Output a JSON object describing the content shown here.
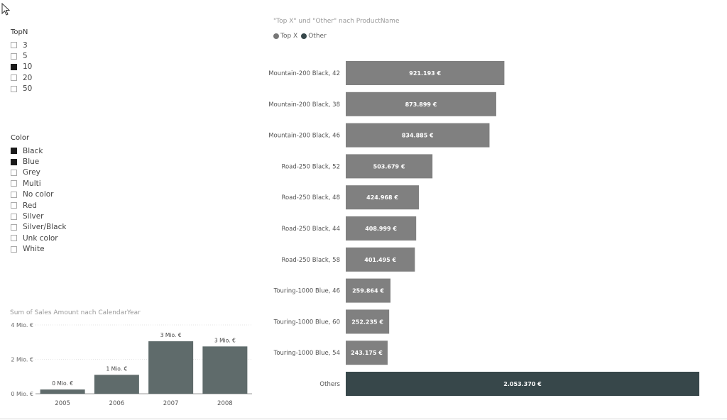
{
  "slicer_topn": {
    "title": "TopN",
    "items": [
      {
        "label": "3",
        "checked": false
      },
      {
        "label": "5",
        "checked": false
      },
      {
        "label": "10",
        "checked": true
      },
      {
        "label": "20",
        "checked": false
      },
      {
        "label": "50",
        "checked": false
      }
    ]
  },
  "slicer_color": {
    "title": "Color",
    "items": [
      {
        "label": "Black",
        "checked": true
      },
      {
        "label": "Blue",
        "checked": true
      },
      {
        "label": "Grey",
        "checked": false
      },
      {
        "label": "Multi",
        "checked": false
      },
      {
        "label": "No color",
        "checked": false
      },
      {
        "label": "Red",
        "checked": false
      },
      {
        "label": "Silver",
        "checked": false
      },
      {
        "label": "Silver/Black",
        "checked": false
      },
      {
        "label": "Unk color",
        "checked": false
      },
      {
        "label": "White",
        "checked": false
      }
    ]
  },
  "legend": {
    "items": [
      {
        "label": "Top X",
        "color": "#777777"
      },
      {
        "label": "Other",
        "color": "#37474a"
      }
    ]
  },
  "chart_data": [
    {
      "type": "bar",
      "orientation": "horizontal",
      "title": "\"Top X\" und \"Other\" nach ProductName",
      "categories": [
        "Mountain-200 Black, 42",
        "Mountain-200 Black, 38",
        "Mountain-200 Black, 46",
        "Road-250 Black, 52",
        "Road-250 Black, 48",
        "Road-250 Black, 44",
        "Road-250 Black, 58",
        "Touring-1000 Blue, 46",
        "Touring-1000 Blue, 60",
        "Touring-1000 Blue, 54",
        "Others"
      ],
      "values": [
        921193,
        873899,
        834885,
        503679,
        424968,
        408999,
        401495,
        259864,
        252235,
        243175,
        2053370
      ],
      "value_labels": [
        "921.193 €",
        "873.899 €",
        "834.885 €",
        "503.679 €",
        "424.968 €",
        "408.999 €",
        "401.495 €",
        "259.864 €",
        "252.235 €",
        "243.175 €",
        "2.053.370 €"
      ],
      "groups": [
        "Top X",
        "Top X",
        "Top X",
        "Top X",
        "Top X",
        "Top X",
        "Top X",
        "Top X",
        "Top X",
        "Top X",
        "Other"
      ],
      "colors": {
        "Top X": "#808080",
        "Other": "#37474a"
      },
      "legend_position": "top-left"
    },
    {
      "type": "bar",
      "title": "Sum of Sales Amount nach CalendarYear",
      "categories": [
        "2005",
        "2006",
        "2007",
        "2008"
      ],
      "values": [
        0.25,
        1.1,
        3.05,
        2.75
      ],
      "value_labels": [
        "0 Mio. €",
        "1 Mio. €",
        "3 Mio. €",
        "3 Mio. €"
      ],
      "ytick_labels": [
        "4 Mio. €",
        "2 Mio. €",
        "0 Mio. €"
      ],
      "yticks": [
        4,
        2,
        0
      ],
      "ylim": [
        0,
        4
      ],
      "color": "#5f6b6b",
      "grid": true
    }
  ]
}
